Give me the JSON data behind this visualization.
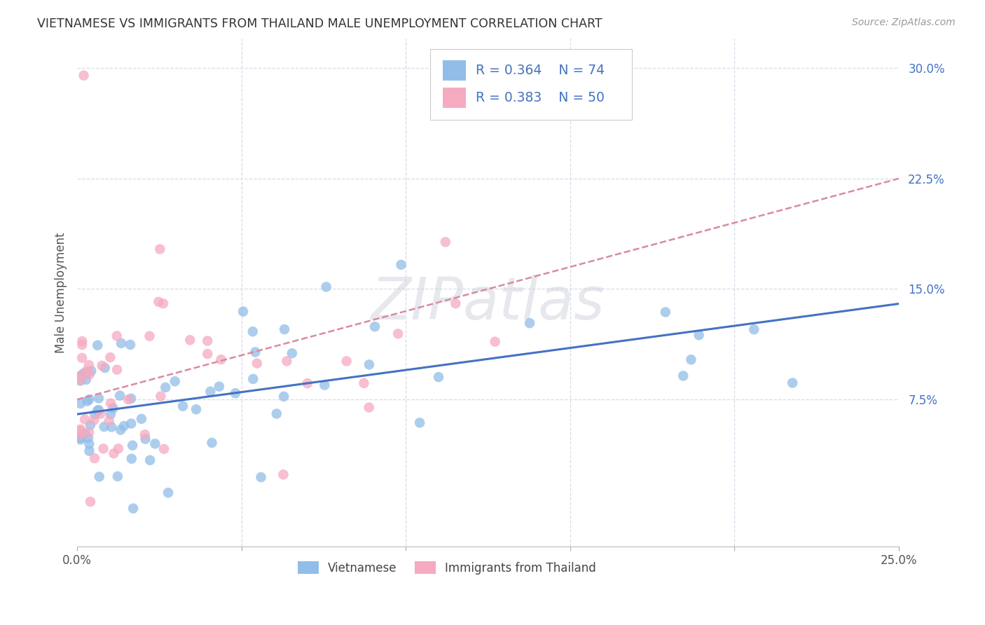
{
  "title": "VIETNAMESE VS IMMIGRANTS FROM THAILAND MALE UNEMPLOYMENT CORRELATION CHART",
  "source": "Source: ZipAtlas.com",
  "ylabel": "Male Unemployment",
  "xlim": [
    0.0,
    0.25
  ],
  "ylim": [
    -0.025,
    0.32
  ],
  "yticks": [
    0.075,
    0.15,
    0.225,
    0.3
  ],
  "ytick_labels": [
    "7.5%",
    "15.0%",
    "22.5%",
    "30.0%"
  ],
  "xticks": [
    0.0,
    0.05,
    0.1,
    0.15,
    0.2,
    0.25
  ],
  "xtick_labels": [
    "0.0%",
    "",
    "",
    "",
    "",
    "25.0%"
  ],
  "grid_color": "#d8dce8",
  "background_color": "#ffffff",
  "legend_label1": "Vietnamese",
  "legend_label2": "Immigrants from Thailand",
  "color1": "#92BDE8",
  "color2": "#F5AABF",
  "trendline_color1": "#4472C4",
  "trendline_color2": "#D98BA0",
  "watermark": "ZIPatlas",
  "viet_seed": 42,
  "thai_seed": 99
}
